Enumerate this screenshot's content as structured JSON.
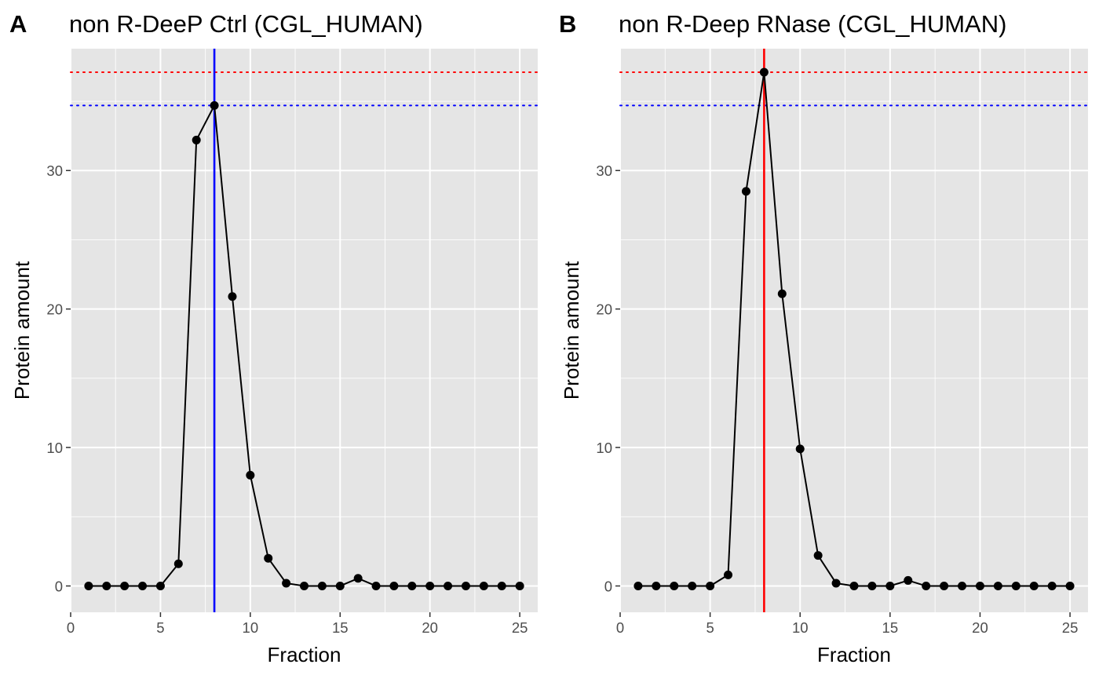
{
  "chart_data": [
    {
      "type": "line",
      "panel_tag": "A",
      "title": "non R-DeeP Ctrl (CGL_HUMAN)",
      "xlabel": "Fraction",
      "ylabel": "Protein amount",
      "xlim": [
        0,
        26
      ],
      "ylim": [
        -1.9,
        38.8
      ],
      "x_ticks": [
        0,
        5,
        10,
        15,
        20,
        25
      ],
      "y_ticks": [
        0,
        10,
        20,
        30
      ],
      "grid": true,
      "series": [
        {
          "x": [
            1,
            2,
            3,
            4,
            5,
            6,
            7,
            8,
            9,
            10,
            11,
            12,
            13,
            14,
            15,
            16,
            17,
            18,
            19,
            20,
            21,
            22,
            23,
            24,
            25
          ],
          "values": [
            0,
            0,
            0,
            0,
            0,
            1.6,
            32.2,
            34.7,
            20.9,
            8.0,
            2.0,
            0.2,
            0,
            0,
            0,
            0.55,
            0,
            0,
            0,
            0,
            0,
            0,
            0,
            0,
            0
          ]
        }
      ],
      "reference_lines": {
        "hlines": [
          {
            "y": 37.1,
            "color": "#ff0000",
            "style": "dotted"
          },
          {
            "y": 34.7,
            "color": "#0000ff",
            "style": "dotted"
          }
        ],
        "vlines": [
          {
            "x": 8,
            "color": "#0000ff",
            "style": "solid"
          }
        ]
      }
    },
    {
      "type": "line",
      "panel_tag": "B",
      "title": "non R-Deep RNase (CGL_HUMAN)",
      "xlabel": "Fraction",
      "ylabel": "Protein amount",
      "xlim": [
        0,
        26
      ],
      "ylim": [
        -1.9,
        38.8
      ],
      "x_ticks": [
        0,
        5,
        10,
        15,
        20,
        25
      ],
      "y_ticks": [
        0,
        10,
        20,
        30
      ],
      "grid": true,
      "series": [
        {
          "x": [
            1,
            2,
            3,
            4,
            5,
            6,
            7,
            8,
            9,
            10,
            11,
            12,
            13,
            14,
            15,
            16,
            17,
            18,
            19,
            20,
            21,
            22,
            23,
            24,
            25
          ],
          "values": [
            0,
            0,
            0,
            0,
            0,
            0.8,
            28.5,
            37.1,
            21.1,
            9.9,
            2.2,
            0.2,
            0,
            0,
            0,
            0.4,
            0,
            0,
            0,
            0,
            0,
            0,
            0,
            0,
            0
          ]
        }
      ],
      "reference_lines": {
        "hlines": [
          {
            "y": 37.1,
            "color": "#ff0000",
            "style": "dotted"
          },
          {
            "y": 34.7,
            "color": "#0000ff",
            "style": "dotted"
          }
        ],
        "vlines": [
          {
            "x": 8,
            "color": "#ff0000",
            "style": "solid"
          }
        ]
      }
    }
  ],
  "colors": {
    "panel_background": "#e5e5e5",
    "grid": "#ffffff",
    "series": "#000000"
  }
}
